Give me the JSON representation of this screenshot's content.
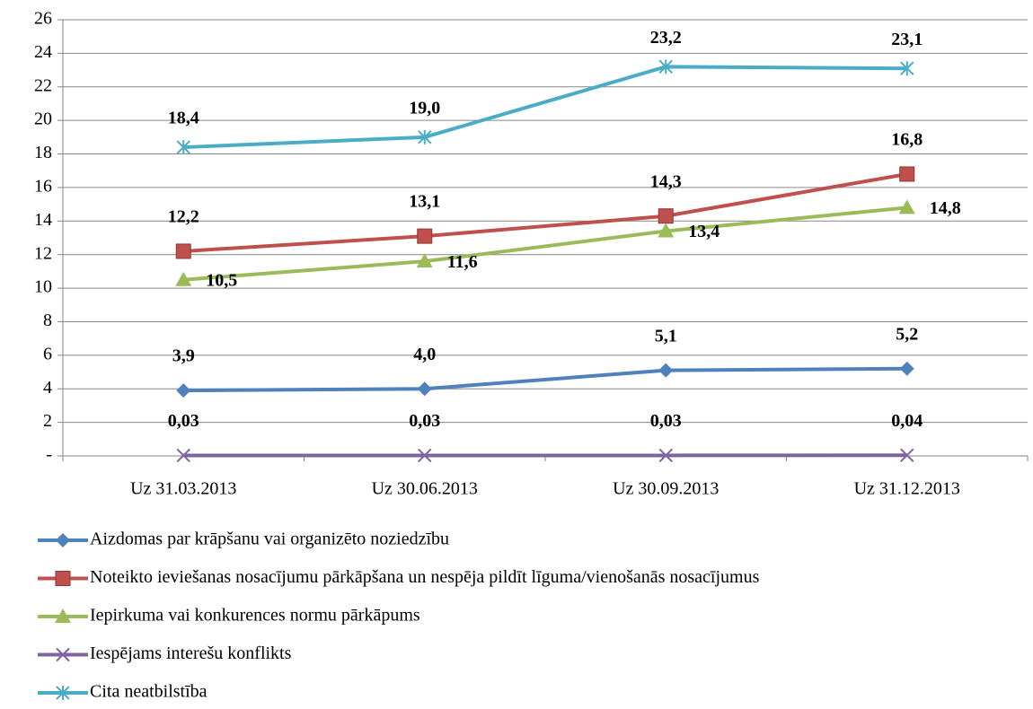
{
  "chart_data": {
    "type": "line",
    "categories": [
      "Uz 31.03.2013",
      "Uz 30.06.2013",
      "Uz 30.09.2013",
      "Uz 31.12.2013"
    ],
    "series": [
      {
        "name": "Aizdomas par krāpšanu vai organizēto noziedzību",
        "color": "#4f81bd",
        "marker": "diamond",
        "values": [
          3.9,
          4.0,
          5.1,
          5.2
        ],
        "value_labels": [
          "3,9",
          "4,0",
          "5,1",
          "5,2"
        ]
      },
      {
        "name": "Noteikto ieviešanas nosacījumu pārkāpšana un nespēja pildīt līguma/vienošanās nosacījumus",
        "color": "#c0504d",
        "marker": "square",
        "values": [
          12.2,
          13.1,
          14.3,
          16.8
        ],
        "value_labels": [
          "12,2",
          "13,1",
          "14,3",
          "16,8"
        ]
      },
      {
        "name": "Iepirkuma vai konkurences normu pārkāpums",
        "color": "#9bbb59",
        "marker": "triangle",
        "values": [
          10.5,
          11.6,
          13.4,
          14.8
        ],
        "value_labels": [
          "10,5",
          "11,6",
          "13,4",
          "14,8"
        ]
      },
      {
        "name": "Iespējams interešu konflikts",
        "color": "#8064a2",
        "marker": "x",
        "values": [
          0.03,
          0.03,
          0.03,
          0.04
        ],
        "value_labels": [
          "0,03",
          "0,03",
          "0,03",
          "0,04"
        ]
      },
      {
        "name": "Cita neatbilstība",
        "color": "#4bacc6",
        "marker": "asterisk",
        "values": [
          18.4,
          19.0,
          23.2,
          23.1
        ],
        "value_labels": [
          "18,4",
          "19,0",
          "23,2",
          "23,1"
        ]
      }
    ],
    "ylim": [
      0,
      26
    ],
    "yticks": [
      {
        "value": 0,
        "label": "-"
      },
      2,
      4,
      6,
      8,
      10,
      12,
      14,
      16,
      18,
      20,
      22,
      24,
      26
    ],
    "grid": true,
    "legend": "bottom"
  }
}
